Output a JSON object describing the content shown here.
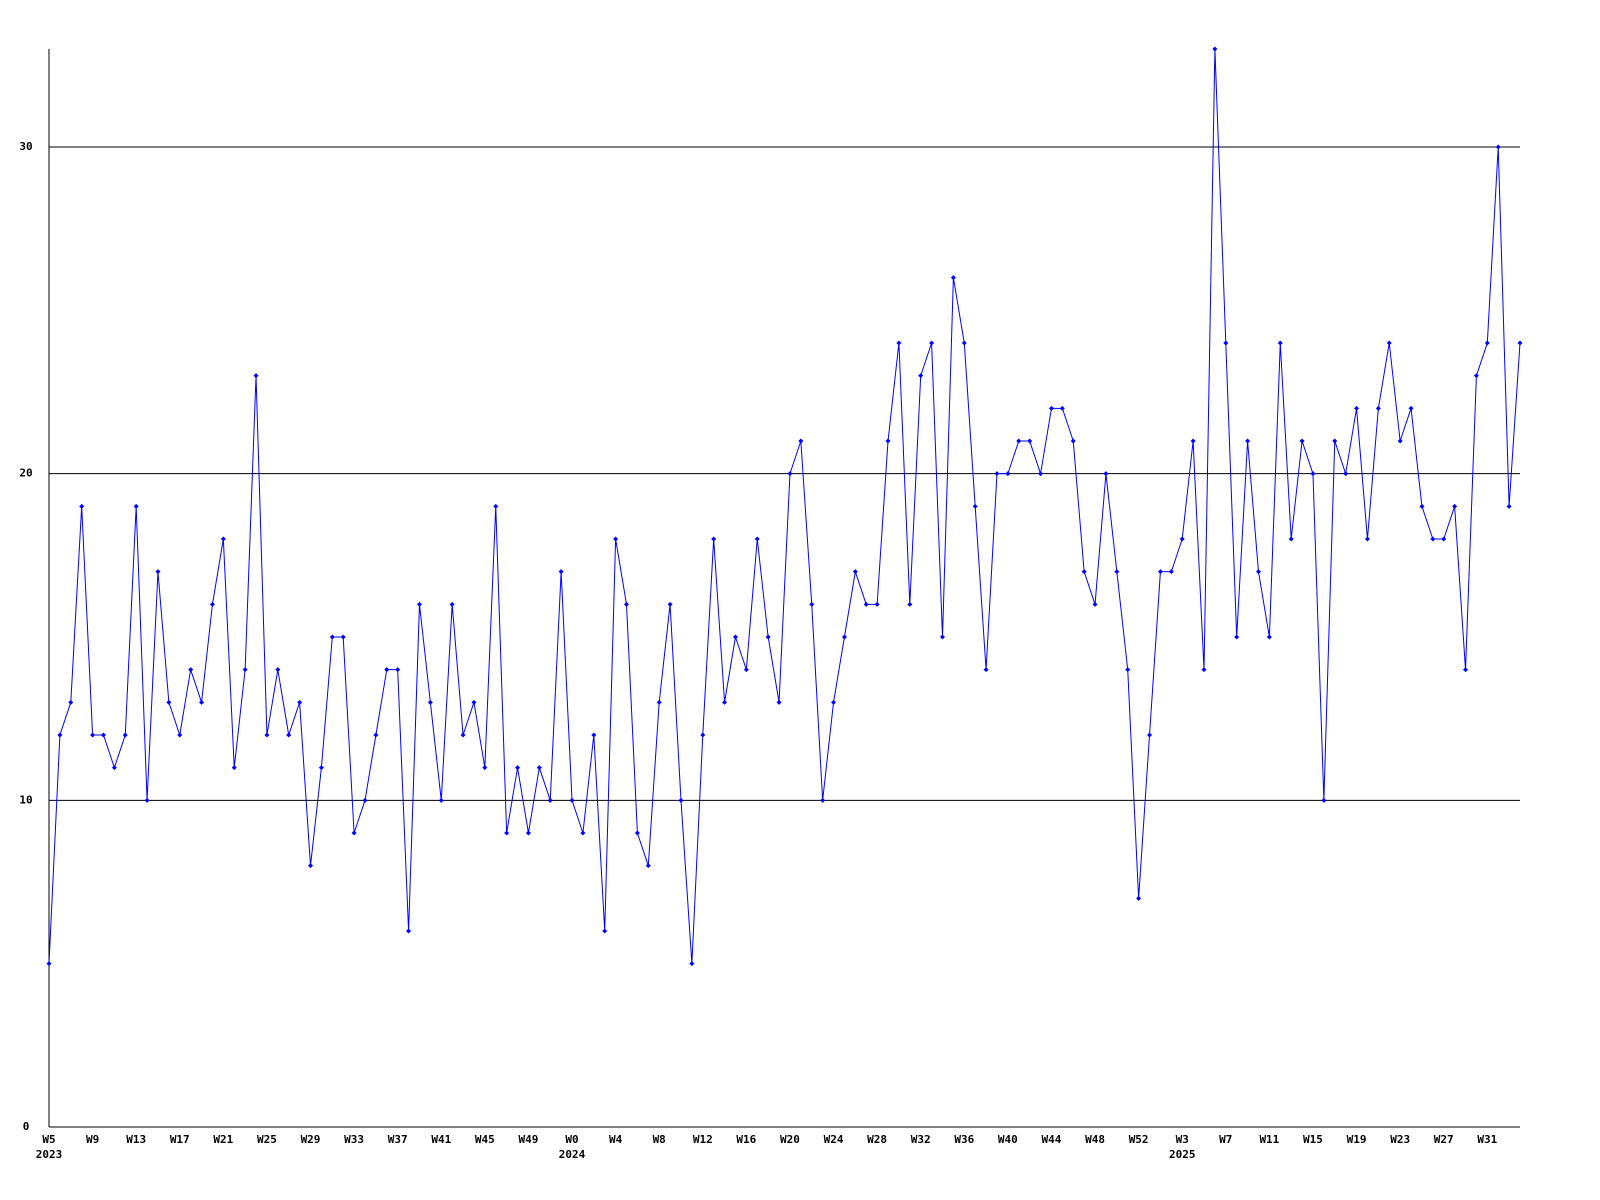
{
  "chart_data": {
    "type": "line",
    "categories": [
      "W5\n2023",
      null,
      null,
      null,
      "W9",
      null,
      null,
      null,
      "W13",
      null,
      null,
      null,
      "W17",
      null,
      null,
      null,
      "W21",
      null,
      null,
      null,
      "W25",
      null,
      null,
      null,
      "W29",
      null,
      null,
      null,
      "W33",
      null,
      null,
      null,
      "W37",
      null,
      null,
      null,
      "W41",
      null,
      null,
      null,
      "W45",
      null,
      null,
      null,
      "W49",
      null,
      null,
      null,
      "W0\n2024",
      null,
      null,
      null,
      "W4",
      null,
      null,
      null,
      "W8",
      null,
      null,
      null,
      "W12",
      null,
      null,
      null,
      "W16",
      null,
      null,
      null,
      "W20",
      null,
      null,
      null,
      "W24",
      null,
      null,
      null,
      "W28",
      null,
      null,
      null,
      "W32",
      null,
      null,
      null,
      "W36",
      null,
      null,
      null,
      "W40",
      null,
      null,
      null,
      "W44",
      null,
      null,
      null,
      "W48",
      null,
      null,
      null,
      "W52",
      null,
      null,
      null,
      "W3\n2025",
      null,
      null,
      null,
      "W7",
      null,
      null,
      null,
      "W11",
      null,
      null,
      null,
      "W15",
      null,
      null,
      null,
      "W19",
      null,
      null,
      null,
      "W23",
      null,
      null,
      null,
      "W27",
      null,
      null,
      null,
      "W31",
      null,
      null,
      null
    ],
    "values": [
      5,
      12,
      13,
      19,
      12,
      12,
      11,
      12,
      19,
      10,
      17,
      13,
      12,
      14,
      13,
      16,
      18,
      11,
      14,
      23,
      12,
      14,
      12,
      13,
      8,
      11,
      15,
      15,
      9,
      10,
      12,
      14,
      14,
      6,
      16,
      13,
      10,
      16,
      12,
      13,
      11,
      19,
      9,
      11,
      9,
      11,
      10,
      17,
      10,
      9,
      12,
      6,
      18,
      16,
      9,
      8,
      13,
      16,
      10,
      5,
      12,
      18,
      13,
      15,
      14,
      18,
      15,
      13,
      20,
      21,
      16,
      10,
      13,
      15,
      17,
      16,
      16,
      21,
      24,
      16,
      23,
      24,
      15,
      26,
      24,
      19,
      14,
      20,
      20,
      21,
      21,
      20,
      22,
      22,
      21,
      17,
      16,
      20,
      17,
      14,
      7,
      12,
      17,
      17,
      18,
      21,
      14,
      33,
      24,
      15,
      21,
      17,
      15,
      24,
      18,
      21,
      20,
      10,
      21,
      20,
      22,
      18,
      22,
      24,
      21,
      22,
      19,
      18,
      18,
      19,
      14,
      23,
      24,
      30,
      19,
      24
    ],
    "color": "#0000ff",
    "ylim": [
      0,
      33
    ],
    "yticks": [
      0,
      10,
      20,
      30
    ],
    "grid": true
  }
}
